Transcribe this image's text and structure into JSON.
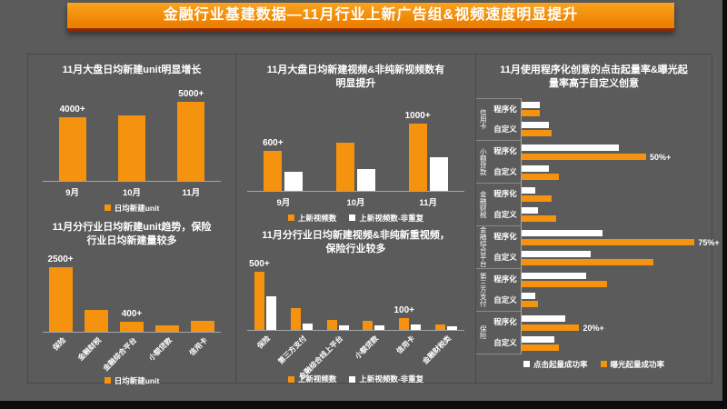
{
  "banner": {
    "title": "金融行业基建数据—11月行业上新广告组&视频速度明显提升"
  },
  "colors": {
    "orange": "#F5920E",
    "white": "#FFFFFF",
    "background": "#5B5B5B",
    "panel_border": "#494949",
    "axis_line": "#A6A6A6",
    "banner_top": "#FAA41E",
    "banner_bottom": "#EE8000",
    "banner_edge": "#8C2B00",
    "text": "#FFFFFF"
  },
  "chart_data": [
    {
      "id": "unit_monthly",
      "type": "bar",
      "title": "11月大盘日均新建unit明显增长",
      "categories": [
        "9月",
        "10月",
        "11月"
      ],
      "values": [
        4000,
        4100,
        5000
      ],
      "labels": [
        "4000+",
        "",
        "5000+"
      ],
      "ylim": [
        0,
        5500
      ],
      "legend": [
        {
          "label": "日均新建unit",
          "color": "orange"
        }
      ]
    },
    {
      "id": "unit_industry",
      "type": "bar",
      "title": "11月分行业日均新建unit趋势，保险行业日均新建量较多",
      "categories": [
        "保险",
        "金融财税",
        "金融综合平台",
        "小额贷款",
        "信用卡"
      ],
      "values": [
        2500,
        850,
        400,
        230,
        430
      ],
      "labels": [
        "2500+",
        "",
        "400+",
        "",
        ""
      ],
      "ylim": [
        0,
        2800
      ],
      "legend": [
        {
          "label": "日均新建unit",
          "color": "orange"
        }
      ]
    },
    {
      "id": "video_monthly",
      "type": "grouped-bar",
      "title": "11月大盘日均新建视频&非纯新视频数有明显提升",
      "categories": [
        "9月",
        "10月",
        "11月"
      ],
      "series": [
        {
          "name": "上新视频数",
          "color": "orange",
          "values": [
            600,
            720,
            1000
          ],
          "labels": [
            "600+",
            "",
            "1000+"
          ]
        },
        {
          "name": "上新视频数-非重复",
          "color": "white",
          "values": [
            280,
            320,
            500
          ],
          "labels": [
            "",
            "",
            ""
          ]
        }
      ],
      "ylim": [
        0,
        1300
      ],
      "legend": [
        {
          "label": "上新视频数",
          "color": "orange"
        },
        {
          "label": "上新视频数-非重复",
          "color": "white"
        }
      ]
    },
    {
      "id": "video_industry",
      "type": "grouped-bar",
      "title": "11月分行业日均新建视频&非纯新重视频，保险行业较多",
      "categories": [
        "保险",
        "第三方支付",
        "金融综合线上平台",
        "小额贷款",
        "信用卡",
        "金融财税类"
      ],
      "series": [
        {
          "name": "上新视频数",
          "color": "orange",
          "values": [
            500,
            190,
            85,
            75,
            100,
            45
          ],
          "labels": [
            "500+",
            "",
            "",
            "",
            "100+",
            ""
          ]
        },
        {
          "name": "上新视频数-非重复",
          "color": "white",
          "values": [
            290,
            55,
            40,
            40,
            50,
            30
          ],
          "labels": [
            "",
            "",
            "",
            "",
            "",
            ""
          ]
        }
      ],
      "ylim": [
        0,
        560
      ],
      "legend": [
        {
          "label": "上新视频数",
          "color": "orange"
        },
        {
          "label": "上新视频数-非重复",
          "color": "white"
        }
      ]
    },
    {
      "id": "programmatic",
      "type": "horizontal-grouped-bar",
      "title": "11月使用程序化创意的点击起量率&曝光起量率高于自定义创意",
      "row_labels": [
        "程序化",
        "自定义"
      ],
      "unit": "%",
      "xlim": [
        0,
        80
      ],
      "groups": [
        {
          "name": "信用卡",
          "rows": [
            {
              "click": 8,
              "expose": 8,
              "label": ""
            },
            {
              "click": 12,
              "expose": 13,
              "label": ""
            }
          ]
        },
        {
          "name": "小额贷款",
          "rows": [
            {
              "click": 42,
              "expose": 54,
              "label": "50%+"
            },
            {
              "click": 12,
              "expose": 16,
              "label": ""
            }
          ]
        },
        {
          "name": "金融财税",
          "rows": [
            {
              "click": 6,
              "expose": 13,
              "label": ""
            },
            {
              "click": 7,
              "expose": 15,
              "label": ""
            }
          ]
        },
        {
          "name": "金融综合平台",
          "rows": [
            {
              "click": 35,
              "expose": 75,
              "label": "75%+"
            },
            {
              "click": 30,
              "expose": 57,
              "label": ""
            }
          ]
        },
        {
          "name": "第三方支付",
          "rows": [
            {
              "click": 28,
              "expose": 37,
              "label": ""
            },
            {
              "click": 6,
              "expose": 7,
              "label": ""
            }
          ]
        },
        {
          "name": "保险",
          "rows": [
            {
              "click": 19,
              "expose": 25,
              "label": "20%+"
            },
            {
              "click": 14,
              "expose": 16,
              "label": ""
            }
          ]
        }
      ],
      "legend": [
        {
          "label": "点击起量成功率",
          "color": "white"
        },
        {
          "label": "曝光起量成功率",
          "color": "orange"
        }
      ]
    }
  ]
}
